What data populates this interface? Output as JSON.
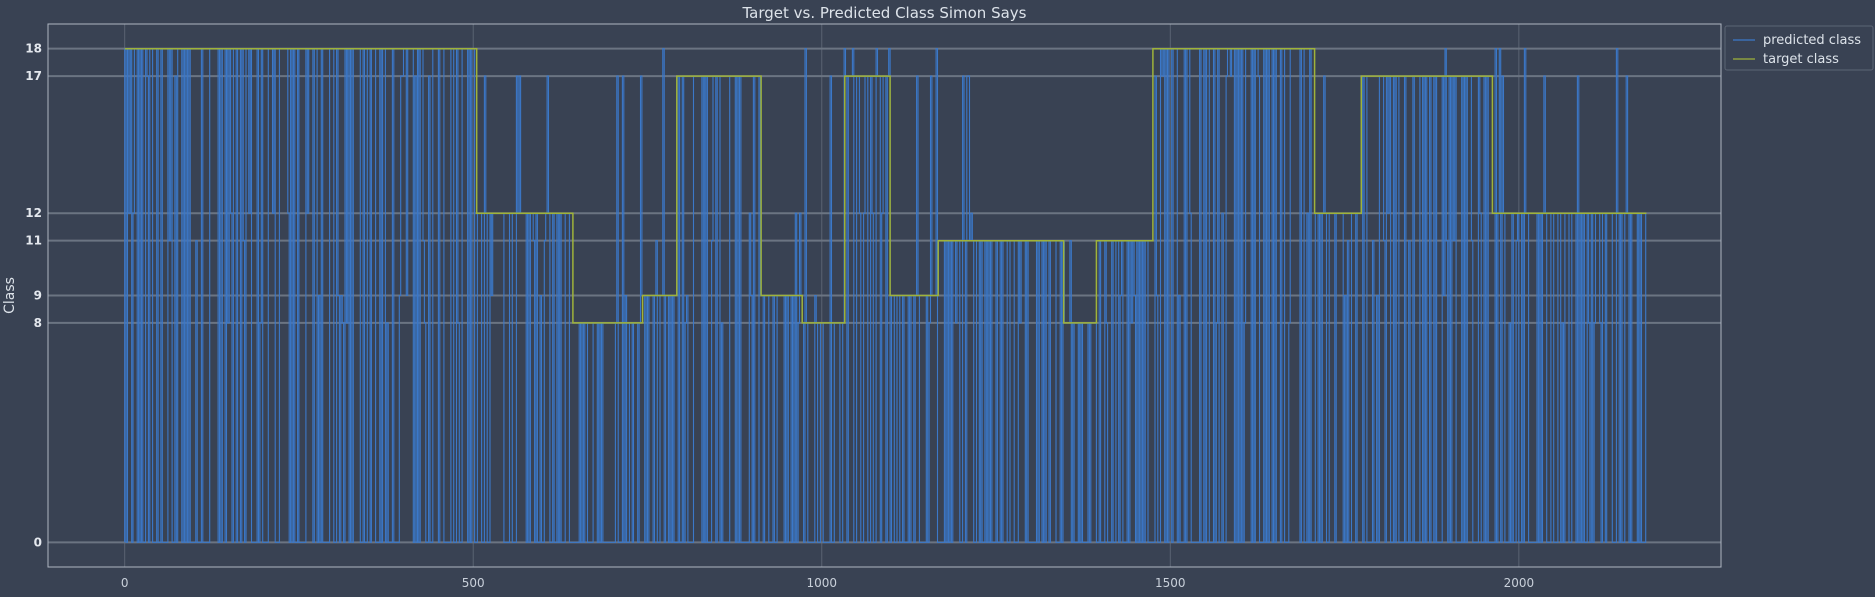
{
  "chart_data": {
    "type": "line",
    "title": "Target vs. Predicted Class Simon Says",
    "xlabel": "",
    "ylabel": "Class",
    "xlim": [
      -110,
      2290
    ],
    "ylim": [
      -0.9,
      18.9
    ],
    "x_ticks": [
      0,
      500,
      1000,
      1500,
      2000
    ],
    "y_ticks": [
      0,
      8,
      9,
      11,
      12,
      17,
      18
    ],
    "grid": true,
    "legend_position": "top-right",
    "series": [
      {
        "name": "predicted class",
        "color": "#3b78c9",
        "kind": "noisy_classifier_output",
        "levels": [
          0,
          8,
          9,
          11,
          12,
          17,
          18
        ]
      },
      {
        "name": "target class",
        "color": "#9fb33a",
        "kind": "step",
        "segments": [
          {
            "x_start": 0,
            "x_end": 505,
            "y": 18
          },
          {
            "x_start": 505,
            "x_end": 643,
            "y": 12
          },
          {
            "x_start": 643,
            "x_end": 743,
            "y": 8
          },
          {
            "x_start": 743,
            "x_end": 792,
            "y": 9
          },
          {
            "x_start": 792,
            "x_end": 913,
            "y": 17
          },
          {
            "x_start": 913,
            "x_end": 972,
            "y": 9
          },
          {
            "x_start": 972,
            "x_end": 1033,
            "y": 8
          },
          {
            "x_start": 1033,
            "x_end": 1098,
            "y": 17
          },
          {
            "x_start": 1098,
            "x_end": 1167,
            "y": 9
          },
          {
            "x_start": 1167,
            "x_end": 1347,
            "y": 11
          },
          {
            "x_start": 1347,
            "x_end": 1394,
            "y": 8
          },
          {
            "x_start": 1394,
            "x_end": 1475,
            "y": 11
          },
          {
            "x_start": 1475,
            "x_end": 1707,
            "y": 18
          },
          {
            "x_start": 1707,
            "x_end": 1774,
            "y": 12
          },
          {
            "x_start": 1774,
            "x_end": 1962,
            "y": 17
          },
          {
            "x_start": 1962,
            "x_end": 2183,
            "y": 12
          }
        ]
      }
    ]
  }
}
